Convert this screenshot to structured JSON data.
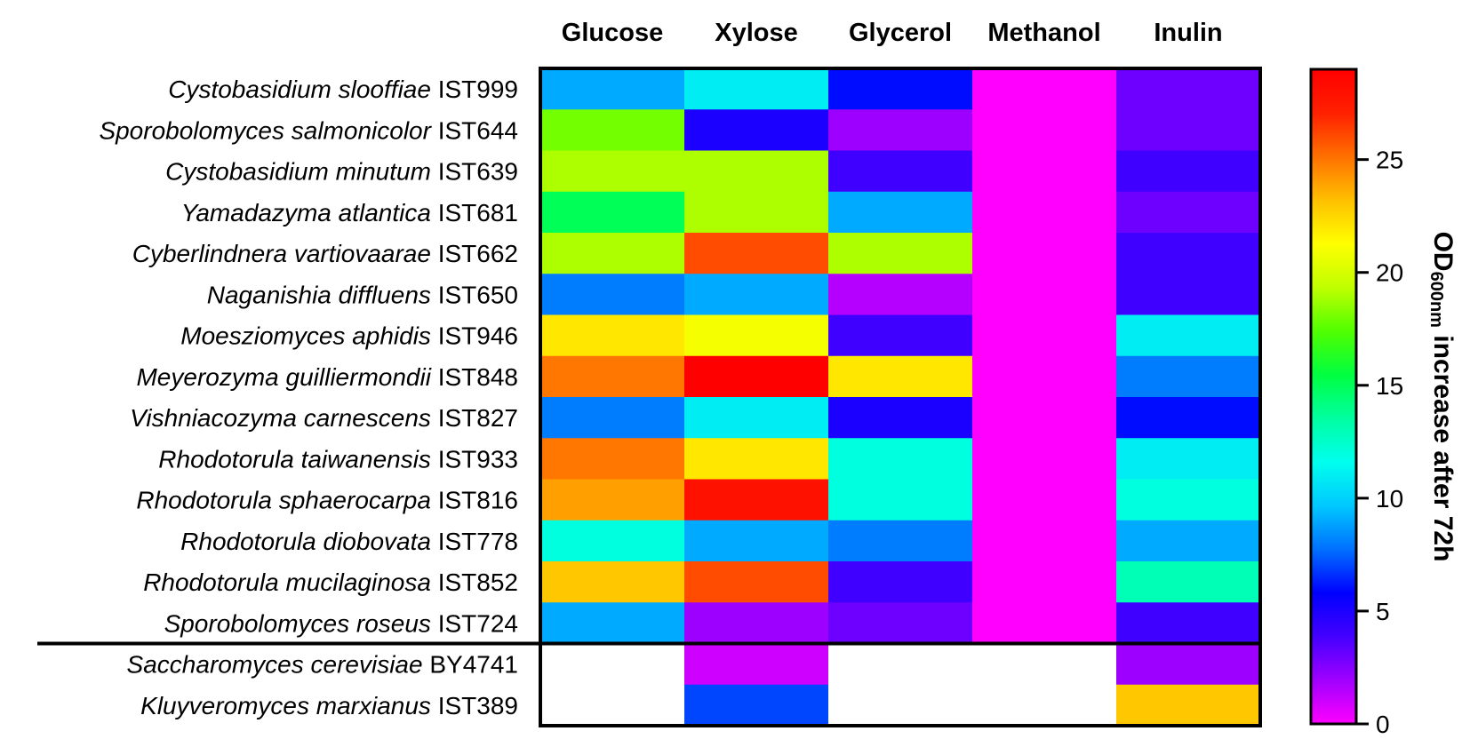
{
  "chart_data": {
    "type": "heatmap",
    "title": "",
    "columns": [
      "Glucose",
      "Xylose",
      "Glycerol",
      "Methanol",
      "Inulin"
    ],
    "rows": [
      {
        "species": "Cystobasidium slooffiae",
        "strain": "IST999"
      },
      {
        "species": "Sporobolomyces salmonicolor",
        "strain": "IST644"
      },
      {
        "species": "Cystobasidium minutum",
        "strain": "IST639"
      },
      {
        "species": "Yamadazyma atlantica",
        "strain": "IST681"
      },
      {
        "species": "Cyberlindnera vartiovaarae",
        "strain": "IST662"
      },
      {
        "species": "Naganishia diffluens",
        "strain": "IST650"
      },
      {
        "species": "Moesziomyces aphidis",
        "strain": "IST946"
      },
      {
        "species": "Meyerozyma guilliermondii",
        "strain": "IST848"
      },
      {
        "species": "Vishniacozyma carnescens",
        "strain": "IST827"
      },
      {
        "species": "Rhodotorula taiwanensis",
        "strain": "IST933"
      },
      {
        "species": "Rhodotorula sphaerocarpa",
        "strain": "IST816"
      },
      {
        "species": "Rhodotorula diobovata",
        "strain": "IST778"
      },
      {
        "species": "Rhodotorula mucilaginosa",
        "strain": "IST852"
      },
      {
        "species": "Sporobolomyces roseus",
        "strain": "IST724"
      },
      {
        "species": "Saccharomyces cerevisiae",
        "strain": "BY4741"
      },
      {
        "species": "Kluyveromyces marxianus",
        "strain": "IST389"
      }
    ],
    "values": [
      [
        9,
        11,
        6,
        0,
        3
      ],
      [
        18,
        5,
        2,
        0,
        3
      ],
      [
        19,
        19,
        4,
        0,
        4
      ],
      [
        15,
        19,
        9,
        0,
        3
      ],
      [
        19,
        26,
        19,
        0,
        4
      ],
      [
        8,
        9,
        1.5,
        0,
        4
      ],
      [
        22,
        21,
        4,
        0,
        11
      ],
      [
        25,
        29,
        22,
        0,
        8
      ],
      [
        8,
        11,
        5,
        0,
        6
      ],
      [
        25,
        22,
        12,
        0,
        11
      ],
      [
        24,
        28,
        12,
        0,
        12
      ],
      [
        12,
        9,
        8,
        0,
        9
      ],
      [
        23,
        26,
        4,
        0,
        13
      ],
      [
        9,
        2,
        3,
        0,
        4
      ],
      [
        null,
        1,
        null,
        null,
        2
      ],
      [
        null,
        7,
        null,
        null,
        23
      ]
    ],
    "separator_after_row": 13,
    "colorbar": {
      "label_main": "OD",
      "label_sub": "600nm",
      "label_rest": " increase after 72h",
      "range": [
        0,
        29
      ],
      "ticks": [
        0,
        5,
        10,
        15,
        20,
        25
      ],
      "colormap": [
        "#ff00ff",
        "#a000ff",
        "#4400ff",
        "#0000ff",
        "#0070ff",
        "#00c8ff",
        "#00ffee",
        "#00ffa0",
        "#00ff40",
        "#50ff00",
        "#c0ff00",
        "#ffff00",
        "#ffc000",
        "#ff7000",
        "#ff2000",
        "#ff0000"
      ]
    }
  }
}
